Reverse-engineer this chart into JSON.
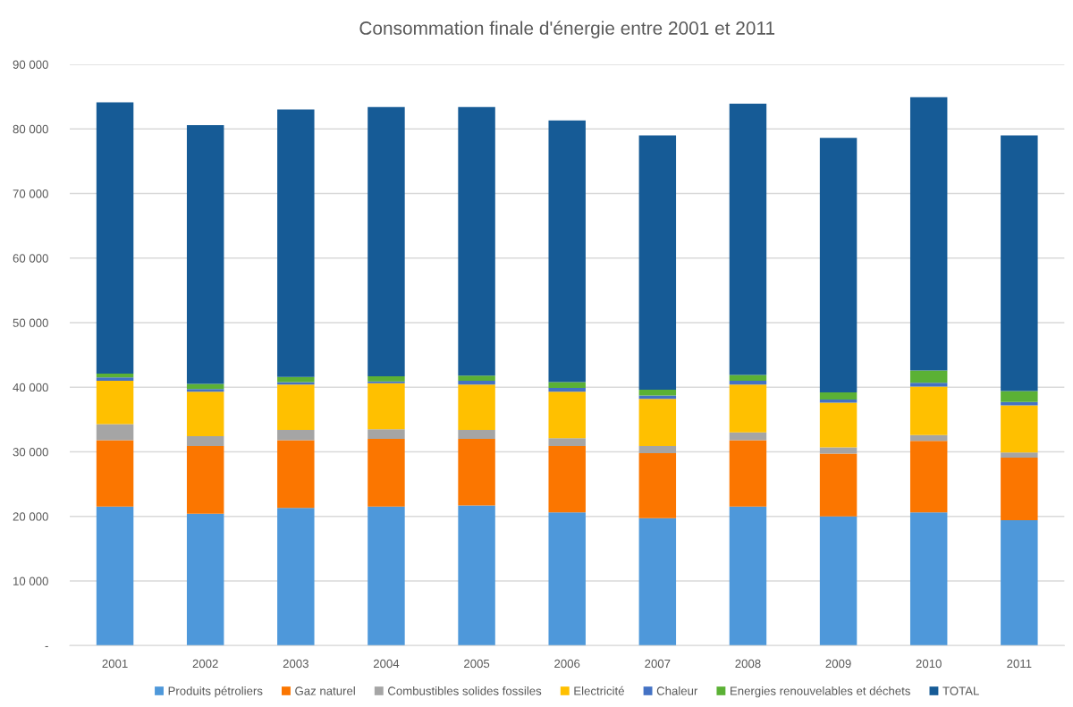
{
  "chart_data": {
    "type": "bar",
    "title": "Consommation finale d'énergie entre 2001 et 2011",
    "categories": [
      "2001",
      "2002",
      "2003",
      "2004",
      "2005",
      "2006",
      "2007",
      "2008",
      "2009",
      "2010",
      "2011"
    ],
    "stacked": true,
    "series": [
      {
        "name": "Produits pétroliers",
        "color": "#4e98da",
        "values": [
          21500,
          20400,
          21300,
          21500,
          21700,
          20600,
          19700,
          21500,
          20000,
          20600,
          19400
        ]
      },
      {
        "name": "Gaz naturel",
        "color": "#fb7600",
        "values": [
          10300,
          10500,
          10500,
          10500,
          10300,
          10300,
          10100,
          10300,
          9700,
          11100,
          9700
        ]
      },
      {
        "name": "Combustibles solides fossiles",
        "color": "#a5a5a5",
        "values": [
          2500,
          1500,
          1600,
          1500,
          1400,
          1200,
          1100,
          1200,
          1000,
          900,
          800
        ]
      },
      {
        "name": "Electricité",
        "color": "#ffc000",
        "values": [
          6700,
          6900,
          7000,
          7100,
          7000,
          7200,
          7300,
          7400,
          6900,
          7500,
          7300
        ]
      },
      {
        "name": "Chaleur",
        "color": "#4472c4",
        "values": [
          500,
          400,
          400,
          300,
          600,
          600,
          500,
          600,
          500,
          600,
          500
        ]
      },
      {
        "name": "Energies renouvelables et déchets",
        "color": "#5bb135",
        "values": [
          600,
          800,
          800,
          800,
          800,
          900,
          900,
          900,
          1100,
          1900,
          1700
        ]
      },
      {
        "name": "TOTAL",
        "color": "#165b96",
        "values": [
          42000,
          40100,
          41400,
          41700,
          41600,
          40500,
          39400,
          42000,
          39400,
          42300,
          39600
        ]
      }
    ],
    "ylim": [
      0,
      90000
    ],
    "yticks": [
      {
        "value": 0,
        "label": "-"
      },
      {
        "value": 10000,
        "label": "10 000"
      },
      {
        "value": 20000,
        "label": "20 000"
      },
      {
        "value": 30000,
        "label": "30 000"
      },
      {
        "value": 40000,
        "label": "40 000"
      },
      {
        "value": 50000,
        "label": "50 000"
      },
      {
        "value": 60000,
        "label": "60 000"
      },
      {
        "value": 70000,
        "label": "70 000"
      },
      {
        "value": 80000,
        "label": "80 000"
      },
      {
        "value": 90000,
        "label": "90 000"
      }
    ],
    "grid": "y",
    "legend": "bottom"
  }
}
